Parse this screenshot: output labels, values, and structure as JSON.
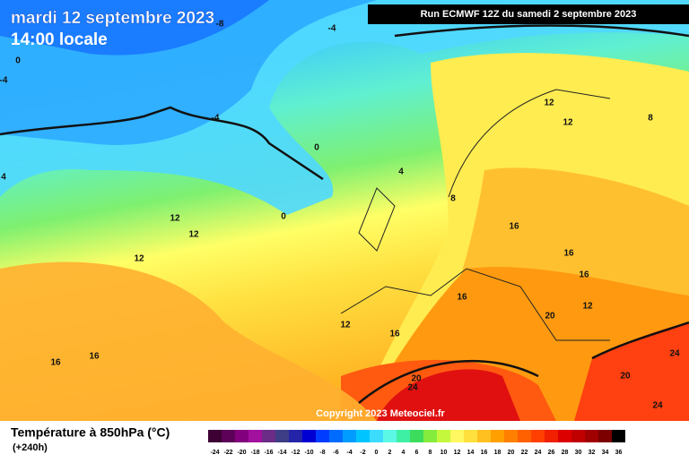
{
  "header": {
    "title": "mardi 12 septembre 2023",
    "time": "14:00 locale",
    "run": "Run ECMWF 12Z du samedi 2 septembre 2023"
  },
  "copyright": "Copyright 2023 Meteociel.fr",
  "legend": {
    "title": "Température à 850hPa (°C)",
    "lead": "(+240h)",
    "labels": [
      -24,
      -22,
      -20,
      -18,
      -16,
      -14,
      -12,
      -10,
      -8,
      -6,
      -4,
      -2,
      0,
      2,
      4,
      6,
      8,
      10,
      12,
      14,
      16,
      18,
      20,
      22,
      24,
      26,
      28,
      30,
      32,
      34,
      36
    ],
    "colors": [
      "#3c0032",
      "#5c0058",
      "#82007e",
      "#a2109e",
      "#6a2c86",
      "#3e3e86",
      "#2424a8",
      "#0000d2",
      "#003cff",
      "#006cff",
      "#009cff",
      "#00c4ff",
      "#3cdcff",
      "#5cf8e6",
      "#3ef0a4",
      "#3cdc5c",
      "#84ec3c",
      "#c4f83c",
      "#fff860",
      "#ffe03c",
      "#ffc020",
      "#ffa000",
      "#ff8000",
      "#ff6000",
      "#ff4000",
      "#f02000",
      "#dc0000",
      "#c00000",
      "#a00000",
      "#7c0000",
      "#000000"
    ]
  },
  "contour_labels": [
    -8,
    -4,
    0,
    -4,
    -4,
    0,
    4,
    0,
    4,
    12,
    8,
    12,
    8,
    12,
    12,
    12,
    16,
    16,
    16,
    16,
    12,
    20,
    12,
    16,
    16,
    16,
    24,
    20,
    24,
    20,
    24
  ]
}
